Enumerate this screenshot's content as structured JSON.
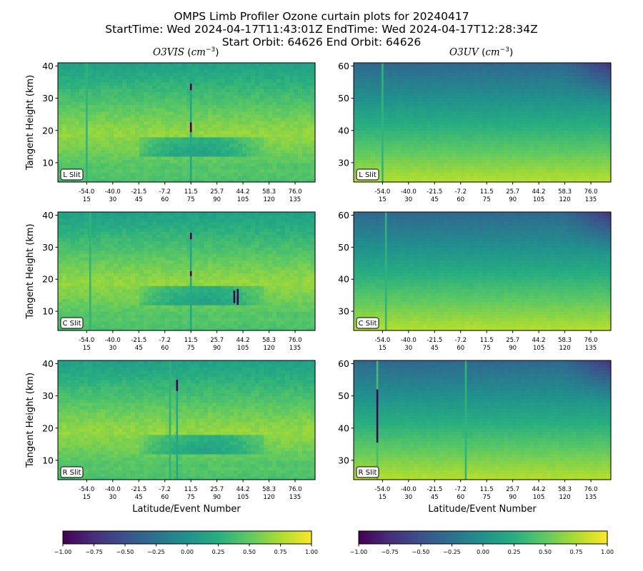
{
  "header": {
    "line1": "OMPS Limb Profiler Ozone curtain plots for 20240417",
    "line2": "StartTime: Wed 2024-04-17T11:43:01Z  EndTime: Wed 2024-04-17T12:28:34Z",
    "line3": "Start Orbit: 64626 End Orbit: 64626"
  },
  "columns": {
    "left_title": "O3VIS",
    "right_title": "O3UV",
    "unit_base": "cm",
    "unit_exp": "−3"
  },
  "chart_data": [
    {
      "type": "heatmap",
      "panel": "O3VIS L Slit",
      "slit_label": "L Slit",
      "ylabel": "Tangent Height (km)",
      "xlabel": "",
      "ylim": [
        4,
        41
      ],
      "yticks": [
        10,
        20,
        30,
        40
      ],
      "xtick_lat": [
        "-54.0",
        "-40.0",
        "-21.5",
        "-7.2",
        "11.5",
        "25.7",
        "44.2",
        "58.3",
        "76.0"
      ],
      "xtick_event": [
        "15",
        "30",
        "45",
        "60",
        "75",
        "90",
        "105",
        "120",
        "135"
      ],
      "stripes": [
        {
          "event": 15,
          "value": 0.3
        },
        {
          "event": 75,
          "value": 0.2
        }
      ],
      "dark_segments": [
        {
          "event": 75,
          "y0": 32.5,
          "y1": 34.5
        },
        {
          "event": 75,
          "y0": 19.5,
          "y1": 22.5
        }
      ],
      "colorbar_range": [
        -1,
        1
      ]
    },
    {
      "type": "heatmap",
      "panel": "O3UV L Slit",
      "slit_label": "L Slit",
      "ylabel": "",
      "xlabel": "",
      "ylim": [
        24,
        61
      ],
      "yticks": [
        30,
        40,
        50,
        60
      ],
      "xtick_lat": [
        "-54.0",
        "-40.0",
        "-21.5",
        "-7.2",
        "11.5",
        "25.7",
        "44.2",
        "58.3",
        "76.0"
      ],
      "xtick_event": [
        "15",
        "30",
        "45",
        "60",
        "75",
        "90",
        "105",
        "120",
        "135"
      ],
      "stripes": [
        {
          "event": 15,
          "value": 0.3
        }
      ],
      "dark_segments": [],
      "colorbar_range": [
        -1,
        1
      ]
    },
    {
      "type": "heatmap",
      "panel": "O3VIS C Slit",
      "slit_label": "C Slit",
      "ylabel": "Tangent Height (km)",
      "xlabel": "",
      "ylim": [
        4,
        41
      ],
      "yticks": [
        10,
        20,
        30,
        40
      ],
      "xtick_lat": [
        "-54.0",
        "-40.0",
        "-21.5",
        "-7.2",
        "11.5",
        "25.7",
        "44.2",
        "58.3",
        "76.0"
      ],
      "xtick_event": [
        "15",
        "30",
        "45",
        "60",
        "75",
        "90",
        "105",
        "120",
        "135"
      ],
      "stripes": [
        {
          "event": 17,
          "value": 0.3
        },
        {
          "event": 75,
          "value": 0.2
        }
      ],
      "dark_segments": [
        {
          "event": 75,
          "y0": 32.5,
          "y1": 34.5
        },
        {
          "event": 75,
          "y0": 21,
          "y1": 22.5
        },
        {
          "event": 100,
          "y0": 12.5,
          "y1": 16.5
        },
        {
          "event": 102,
          "y0": 12,
          "y1": 17
        }
      ],
      "colorbar_range": [
        -1,
        1
      ]
    },
    {
      "type": "heatmap",
      "panel": "O3UV C Slit",
      "slit_label": "C Slit",
      "ylabel": "",
      "xlabel": "",
      "ylim": [
        24,
        61
      ],
      "yticks": [
        30,
        40,
        50,
        60
      ],
      "xtick_lat": [
        "-54.0",
        "-40.0",
        "-21.5",
        "-7.2",
        "11.5",
        "25.7",
        "44.2",
        "58.3",
        "76.0"
      ],
      "xtick_event": [
        "15",
        "30",
        "45",
        "60",
        "75",
        "90",
        "105",
        "120",
        "135"
      ],
      "stripes": [
        {
          "event": 17,
          "value": 0.3
        }
      ],
      "dark_segments": [],
      "colorbar_range": [
        -1,
        1
      ]
    },
    {
      "type": "heatmap",
      "panel": "O3VIS R Slit",
      "slit_label": "R Slit",
      "ylabel": "Tangent Height (km)",
      "xlabel": "Latitude/Event Number",
      "ylim": [
        4,
        41
      ],
      "yticks": [
        10,
        20,
        30,
        40
      ],
      "xtick_lat": [
        "-54.0",
        "-40.0",
        "-21.5",
        "-7.2",
        "11.5",
        "25.7",
        "44.2",
        "58.3",
        "76.0"
      ],
      "xtick_event": [
        "15",
        "30",
        "45",
        "60",
        "75",
        "90",
        "105",
        "120",
        "135"
      ],
      "stripes": [
        {
          "event": 63,
          "value": 0.3
        },
        {
          "event": 67,
          "value": 0.2
        }
      ],
      "dark_segments": [
        {
          "event": 67,
          "y0": 31.5,
          "y1": 35
        }
      ],
      "colorbar_range": [
        -1,
        1
      ]
    },
    {
      "type": "heatmap",
      "panel": "O3UV R Slit",
      "slit_label": "R Slit",
      "ylabel": "",
      "xlabel": "Latitude/Event Number",
      "ylim": [
        24,
        61
      ],
      "yticks": [
        30,
        40,
        50,
        60
      ],
      "xtick_lat": [
        "-54.0",
        "-40.0",
        "-21.5",
        "-7.2",
        "11.5",
        "25.7",
        "44.2",
        "58.3",
        "76.0"
      ],
      "xtick_event": [
        "15",
        "30",
        "45",
        "60",
        "75",
        "90",
        "105",
        "120",
        "135"
      ],
      "stripes": [
        {
          "event": 63,
          "value": 0.3
        },
        {
          "event": 12,
          "value": 0.4
        }
      ],
      "dark_segments": [
        {
          "event": 12,
          "y0": 35.5,
          "y1": 52
        }
      ],
      "colorbar_range": [
        -1,
        1
      ]
    }
  ],
  "colorbars": [
    {
      "ticks": [
        "−1.00",
        "−0.75",
        "−0.50",
        "−0.25",
        "0.00",
        "0.25",
        "0.50",
        "0.75",
        "1.00"
      ]
    },
    {
      "ticks": [
        "−1.00",
        "−0.75",
        "−0.50",
        "−0.25",
        "0.00",
        "0.25",
        "0.50",
        "0.75",
        "1.00"
      ]
    }
  ]
}
